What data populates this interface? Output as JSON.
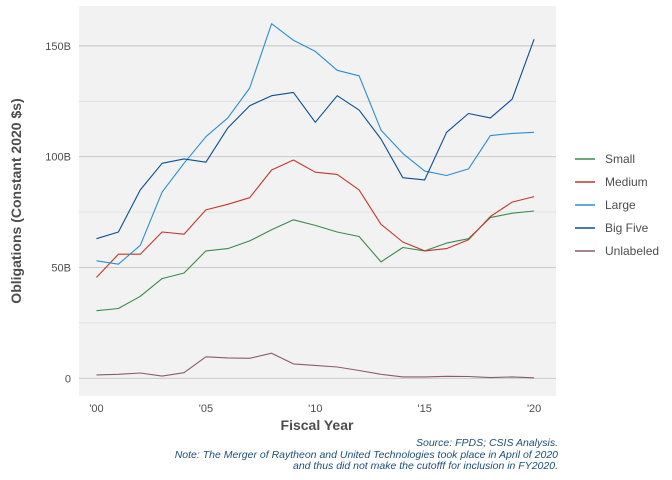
{
  "chart_data": {
    "type": "line",
    "xlabel": "Fiscal Year",
    "ylabel": "Obligations (Constant 2020 $s)",
    "x": [
      2000,
      2001,
      2002,
      2003,
      2004,
      2005,
      2006,
      2007,
      2008,
      2009,
      2010,
      2011,
      2012,
      2013,
      2014,
      2015,
      2016,
      2017,
      2018,
      2019,
      2020
    ],
    "xlim": [
      1999.2,
      2021.0
    ],
    "ylim": [
      -8,
      168
    ],
    "x_ticks": [
      2000,
      2005,
      2010,
      2015,
      2020
    ],
    "x_tick_labels": [
      "'00",
      "'05",
      "'10",
      "'15",
      "'20"
    ],
    "y_ticks": [
      0,
      50,
      100,
      150
    ],
    "y_tick_labels": [
      "0",
      "50B",
      "100B",
      "150B"
    ],
    "grid": true,
    "legend_position": "right",
    "series": [
      {
        "name": "Small",
        "color": "#3b8a4e",
        "values": [
          30.5,
          31.5,
          37,
          45,
          47.5,
          57.5,
          58.5,
          62,
          67,
          71.5,
          69,
          66,
          64,
          52.5,
          59,
          57.5,
          61,
          63,
          72.5,
          74.5,
          75.5
        ]
      },
      {
        "name": "Medium",
        "color": "#c0392b",
        "values": [
          45.5,
          56,
          56,
          66,
          65,
          76,
          78.5,
          81.5,
          94,
          98.5,
          93,
          92,
          85,
          69.5,
          61.5,
          57.5,
          58.5,
          62.5,
          73,
          79.5,
          82
        ]
      },
      {
        "name": "Large",
        "color": "#2a8fd0",
        "values": [
          53,
          51.5,
          60,
          84,
          97,
          109,
          117.5,
          131,
          160,
          152.5,
          147.5,
          139,
          136.5,
          112,
          101.5,
          93.5,
          91.5,
          94.5,
          109.5,
          110.5,
          111
        ]
      },
      {
        "name": "Big Five",
        "color": "#0a4f94",
        "values": [
          63,
          66,
          85,
          97,
          99,
          97.5,
          113,
          123,
          127.5,
          129,
          115.5,
          127.5,
          121,
          108,
          90.5,
          89.5,
          111,
          119.5,
          117.5,
          126,
          153
        ]
      },
      {
        "name": "Unlabeled",
        "color": "#8c5b6e",
        "values": [
          1.5,
          1.8,
          2.4,
          1,
          2.5,
          9.7,
          9.2,
          9,
          11.3,
          6.5,
          5.8,
          5.1,
          3.5,
          1.8,
          0.6,
          0.6,
          0.9,
          0.8,
          0.3,
          0.6,
          0.2
        ]
      }
    ]
  },
  "caption": {
    "source": "Source: FPDS; CSIS Analysis.",
    "note_line1": "Note: The Merger of Raytheon and United Technologies took place in April of 2020",
    "note_line2": "and thus did not make the cutofff for inclusion in FY2020."
  }
}
